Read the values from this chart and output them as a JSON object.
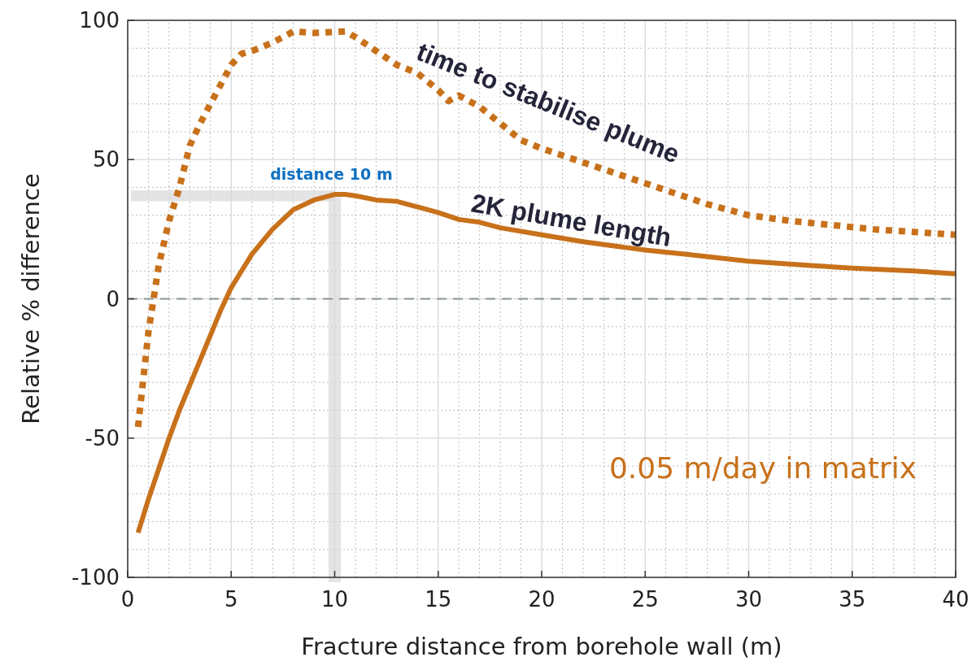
{
  "chart_data": {
    "type": "line",
    "xlabel": "Fracture distance from borehole wall (m)",
    "ylabel": "Relative % difference",
    "xlim": [
      0,
      40
    ],
    "ylim": [
      -100,
      100
    ],
    "xticks": [
      0,
      5,
      10,
      15,
      20,
      25,
      30,
      35,
      40
    ],
    "yticks": [
      -100,
      -50,
      0,
      50,
      100
    ],
    "grid": true,
    "series": [
      {
        "name": "time to stabilise plume",
        "color": "#c8711b",
        "line_style": "dotted",
        "x": [
          0.5,
          1,
          1.5,
          2,
          2.5,
          3,
          3.5,
          4,
          4.5,
          5,
          5.5,
          6,
          7,
          8,
          9,
          10.5,
          11,
          12,
          13,
          14,
          15,
          15.5,
          16,
          17,
          18,
          19,
          20,
          22,
          24,
          26,
          28,
          30,
          32,
          34,
          36,
          38,
          40
        ],
        "values": [
          -46,
          -12,
          12,
          28,
          40,
          55,
          63,
          70,
          77,
          84,
          88,
          89,
          92,
          96,
          95.5,
          96,
          94,
          89,
          84,
          81,
          75,
          71,
          73,
          69,
          63,
          57,
          54,
          49,
          44,
          39,
          34,
          30,
          28,
          26.5,
          25,
          24,
          23
        ]
      },
      {
        "name": "2K plume length",
        "color": "#c8711b",
        "line_style": "solid",
        "x": [
          0.5,
          1,
          1.5,
          2,
          2.5,
          3,
          3.5,
          4,
          4.5,
          5,
          5.5,
          6,
          7,
          8,
          9,
          10,
          10.5,
          11,
          12,
          13,
          14,
          15,
          16,
          17,
          18,
          20,
          22,
          24,
          25,
          27,
          30,
          33,
          35,
          38,
          40
        ],
        "values": [
          -84,
          -72,
          -61,
          -50,
          -40,
          -31,
          -22,
          -13,
          -4,
          4,
          10,
          16,
          25,
          32,
          35.5,
          37.5,
          37.5,
          37,
          35.5,
          35,
          33,
          31,
          28.5,
          27.5,
          25.5,
          23,
          20.5,
          18.5,
          17.5,
          16,
          13.5,
          12,
          11,
          10,
          9
        ]
      }
    ],
    "ref_lines": [
      {
        "axis": "y",
        "value": 0,
        "color": "#8a9a90",
        "line_style": "dashed"
      }
    ],
    "bands": [
      {
        "axis": "x",
        "from": 9.7,
        "to": 10.3,
        "color": "#d9d9d9"
      },
      {
        "axis": "y",
        "from": 35,
        "to": 39,
        "color": "#d9d9d9"
      }
    ],
    "annotations": [
      {
        "text": "distance 10 m",
        "x": 10,
        "y": 37.5
      },
      "0.05   m/day in matrix"
    ]
  }
}
